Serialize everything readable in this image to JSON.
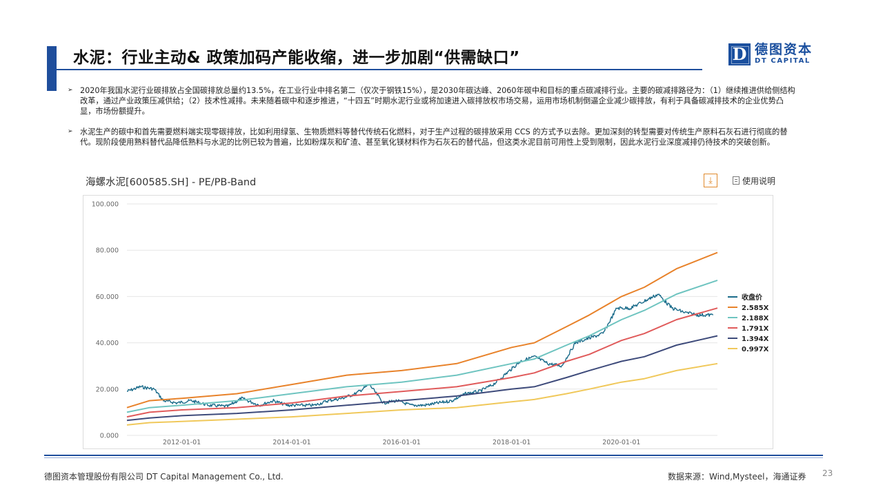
{
  "title": "水泥：行业主动& 政策加码产能收缩，进一步加剧“供需缺口”",
  "logo": {
    "cn": "德图资本",
    "en": "DT CAPITAL",
    "mark": "D"
  },
  "bullets": [
    "2020年我国水泥行业碳排放占全国碳排放总量约13.5%，在工业行业中排名第二（仅次于钢铁15%），是2030年碳达峰、2060年碳中和目标的重点碳减排行业。主要的碳减排路径为：（1）继续推进供给侧结构改革，通过产业政策压减供给；（2）技术性减排。未来随着碳中和逐步推进，“十四五”时期水泥行业或将加速进入碳排放权市场交易，运用市场机制倒逼企业减少碳排放，有利于具备碳减排技术的企业优势凸显，市场份额提升。",
    "水泥生产的碳中和首先需要燃料端实现零碳排放，比如利用绿氢、生物质燃料等替代传统石化燃料，对于生产过程的碳排放采用  CCS 的方式予以去除。更加深刻的转型需要对传统生产原料石灰石进行彻底的替代。现阶段使用熟料替代品降低熟料与水泥的比例已较为普遍，比如粉煤灰和矿渣、甚至氧化镁材料作为石灰石的替代品，但这类水泥目前可用性上受到限制，因此水泥行业深度减排仍待技术的突破创新。"
  ],
  "chart_header": "海螺水泥[600585.SH] - PE/PB-Band",
  "help_label": "使用说明",
  "footer": {
    "company": "德图资本管理股份有限公司  DT Capital Management  Co., Ltd.",
    "source": "数据来源：Wind,Mysteel，海通证券",
    "page": "23"
  },
  "colors": {
    "accent": "#1f4e9c",
    "price": "#1a6b8a",
    "band_2585": "#e8822a",
    "band_2188": "#6ec4c0",
    "band_1791": "#e05a5a",
    "band_1394": "#3d4a7a",
    "band_0997": "#f0c85a"
  },
  "chart_data": {
    "type": "line",
    "title": "海螺水泥[600585.SH] - PE/PB-Band",
    "ylim": [
      0,
      100
    ],
    "yticks": [
      "100.000",
      "80.000",
      "60.000",
      "40.000",
      "20.000",
      "0.000"
    ],
    "xlim": [
      "2011-01-01",
      "2021-09-30"
    ],
    "xticks": [
      "2012-01-01",
      "2014-01-01",
      "2016-01-01",
      "2018-01-01",
      "2020-01-01"
    ],
    "legend_position": "right",
    "grid": true,
    "series": [
      {
        "name": "收盘价",
        "color": "#1a6b8a",
        "points": [
          [
            "2011-01-01",
            19
          ],
          [
            "2011-04-01",
            21
          ],
          [
            "2011-07-01",
            20
          ],
          [
            "2011-09-01",
            15
          ],
          [
            "2011-12-01",
            14
          ],
          [
            "2012-03-01",
            15
          ],
          [
            "2012-07-01",
            13
          ],
          [
            "2012-11-01",
            12.5
          ],
          [
            "2013-02-01",
            16
          ],
          [
            "2013-06-01",
            13
          ],
          [
            "2013-09-01",
            15
          ],
          [
            "2013-12-01",
            13
          ],
          [
            "2014-03-01",
            13
          ],
          [
            "2014-06-01",
            13
          ],
          [
            "2014-09-01",
            15
          ],
          [
            "2014-12-01",
            16
          ],
          [
            "2015-03-01",
            18
          ],
          [
            "2015-06-01",
            22
          ],
          [
            "2015-09-01",
            14
          ],
          [
            "2015-12-01",
            15
          ],
          [
            "2016-03-01",
            13
          ],
          [
            "2016-06-01",
            13
          ],
          [
            "2016-09-01",
            14
          ],
          [
            "2016-12-01",
            15
          ],
          [
            "2017-03-01",
            18
          ],
          [
            "2017-06-01",
            19
          ],
          [
            "2017-09-01",
            22
          ],
          [
            "2017-12-01",
            27
          ],
          [
            "2018-03-01",
            32
          ],
          [
            "2018-06-01",
            34
          ],
          [
            "2018-09-01",
            31
          ],
          [
            "2018-12-01",
            30
          ],
          [
            "2019-03-01",
            40
          ],
          [
            "2019-06-01",
            42
          ],
          [
            "2019-09-01",
            44
          ],
          [
            "2019-12-01",
            55
          ],
          [
            "2020-03-01",
            55
          ],
          [
            "2020-06-01",
            58
          ],
          [
            "2020-09-01",
            61
          ],
          [
            "2020-12-01",
            55
          ],
          [
            "2021-03-01",
            53
          ],
          [
            "2021-06-01",
            52
          ],
          [
            "2021-09-01",
            52
          ]
        ]
      },
      {
        "name": "2.585X",
        "color": "#e8822a",
        "points": [
          [
            "2011-01-01",
            12
          ],
          [
            "2011-06-01",
            15
          ],
          [
            "2012-01-01",
            16
          ],
          [
            "2013-01-01",
            18
          ],
          [
            "2014-01-01",
            22
          ],
          [
            "2015-01-01",
            26
          ],
          [
            "2016-01-01",
            28
          ],
          [
            "2017-01-01",
            31
          ],
          [
            "2018-01-01",
            38
          ],
          [
            "2018-06-01",
            40
          ],
          [
            "2019-01-01",
            47
          ],
          [
            "2019-06-01",
            52
          ],
          [
            "2020-01-01",
            60
          ],
          [
            "2020-06-01",
            64
          ],
          [
            "2021-01-01",
            72
          ],
          [
            "2021-09-30",
            79
          ]
        ]
      },
      {
        "name": "2.188X",
        "color": "#6ec4c0",
        "points": [
          [
            "2011-01-01",
            10
          ],
          [
            "2011-06-01",
            12
          ],
          [
            "2012-01-01",
            13
          ],
          [
            "2013-01-01",
            15
          ],
          [
            "2014-01-01",
            18
          ],
          [
            "2015-01-01",
            21
          ],
          [
            "2016-01-01",
            23
          ],
          [
            "2017-01-01",
            26
          ],
          [
            "2018-01-01",
            31
          ],
          [
            "2018-06-01",
            33
          ],
          [
            "2019-01-01",
            39
          ],
          [
            "2019-06-01",
            43
          ],
          [
            "2020-01-01",
            50
          ],
          [
            "2020-06-01",
            54
          ],
          [
            "2021-01-01",
            61
          ],
          [
            "2021-09-30",
            67
          ]
        ]
      },
      {
        "name": "1.791X",
        "color": "#e05a5a",
        "points": [
          [
            "2011-01-01",
            8
          ],
          [
            "2011-06-01",
            10
          ],
          [
            "2012-01-01",
            11
          ],
          [
            "2013-01-01",
            12
          ],
          [
            "2014-01-01",
            14
          ],
          [
            "2015-01-01",
            17
          ],
          [
            "2016-01-01",
            19
          ],
          [
            "2017-01-01",
            21
          ],
          [
            "2018-01-01",
            25
          ],
          [
            "2018-06-01",
            27
          ],
          [
            "2019-01-01",
            32
          ],
          [
            "2019-06-01",
            35
          ],
          [
            "2020-01-01",
            41
          ],
          [
            "2020-06-01",
            44
          ],
          [
            "2021-01-01",
            50
          ],
          [
            "2021-09-30",
            55
          ]
        ]
      },
      {
        "name": "1.394X",
        "color": "#3d4a7a",
        "points": [
          [
            "2011-01-01",
            6.5
          ],
          [
            "2011-06-01",
            7.5
          ],
          [
            "2012-01-01",
            8.5
          ],
          [
            "2013-01-01",
            9.5
          ],
          [
            "2014-01-01",
            11
          ],
          [
            "2015-01-01",
            13
          ],
          [
            "2016-01-01",
            15
          ],
          [
            "2017-01-01",
            17
          ],
          [
            "2018-01-01",
            20
          ],
          [
            "2018-06-01",
            21
          ],
          [
            "2019-01-01",
            25
          ],
          [
            "2019-06-01",
            28
          ],
          [
            "2020-01-01",
            32
          ],
          [
            "2020-06-01",
            34
          ],
          [
            "2021-01-01",
            39
          ],
          [
            "2021-09-30",
            43
          ]
        ]
      },
      {
        "name": "0.997X",
        "color": "#f0c85a",
        "points": [
          [
            "2011-01-01",
            4.5
          ],
          [
            "2011-06-01",
            5.5
          ],
          [
            "2012-01-01",
            6
          ],
          [
            "2013-01-01",
            7
          ],
          [
            "2014-01-01",
            8
          ],
          [
            "2015-01-01",
            9.5
          ],
          [
            "2016-01-01",
            11
          ],
          [
            "2017-01-01",
            12
          ],
          [
            "2018-01-01",
            14.5
          ],
          [
            "2018-06-01",
            15.5
          ],
          [
            "2019-01-01",
            18
          ],
          [
            "2019-06-01",
            20
          ],
          [
            "2020-01-01",
            23
          ],
          [
            "2020-06-01",
            24.5
          ],
          [
            "2021-01-01",
            28
          ],
          [
            "2021-09-30",
            31
          ]
        ]
      }
    ]
  }
}
